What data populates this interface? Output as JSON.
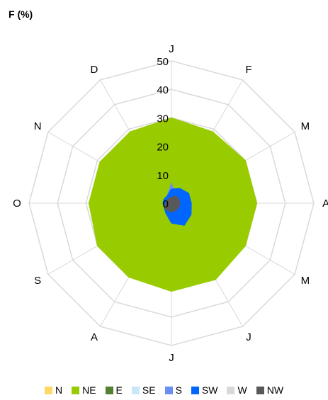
{
  "chart_data": {
    "type": "radar",
    "title": "F (%)",
    "categories": [
      "J",
      "F",
      "M",
      "A",
      "M",
      "J",
      "J",
      "A",
      "S",
      "O",
      "N",
      "D"
    ],
    "rlim": [
      0,
      50
    ],
    "rticks": [
      "0",
      "10",
      "20",
      "30",
      "40",
      "50"
    ],
    "grid": true,
    "legend_position": "bottom",
    "series": [
      {
        "name": "N",
        "color": "#ffd966",
        "values": [
          0,
          0,
          0,
          0,
          0,
          0,
          0,
          0,
          0,
          0,
          0,
          0
        ]
      },
      {
        "name": "NE",
        "color": "#99cc00",
        "values": [
          30,
          29,
          30,
          30,
          30,
          31,
          31,
          30,
          30,
          29,
          29,
          29
        ]
      },
      {
        "name": "E",
        "color": "#548235",
        "values": [
          0,
          0,
          0,
          0,
          0,
          0,
          0,
          0,
          0,
          0,
          0,
          0
        ]
      },
      {
        "name": "SE",
        "color": "#c9e7f7",
        "values": [
          7,
          2,
          1,
          1,
          0,
          0,
          0,
          0,
          0,
          0,
          0,
          0
        ]
      },
      {
        "name": "S",
        "color": "#6b8ff0",
        "values": [
          7,
          3,
          2,
          2,
          1,
          0,
          0,
          0,
          0,
          0,
          0,
          3
        ]
      },
      {
        "name": "SW",
        "color": "#0066ff",
        "values": [
          5,
          6,
          7,
          7,
          8,
          9,
          7,
          4,
          3,
          3,
          3,
          3
        ]
      },
      {
        "name": "W",
        "color": "#d9d9d9",
        "values": [
          1,
          1,
          1,
          1,
          0,
          0,
          0,
          0,
          0,
          0,
          0,
          0
        ]
      },
      {
        "name": "NW",
        "color": "#595959",
        "values": [
          2,
          3,
          3,
          3,
          3,
          3,
          3,
          3,
          3,
          2,
          2,
          2
        ]
      }
    ]
  }
}
